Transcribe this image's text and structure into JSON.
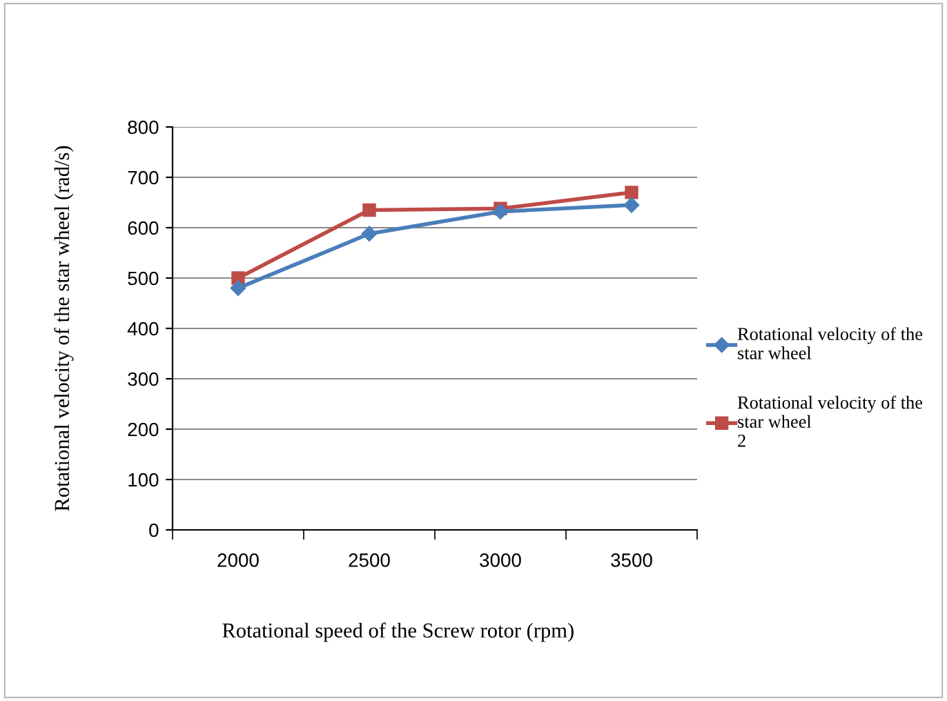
{
  "chart_data": {
    "type": "line",
    "xlabel": "Rotational speed of the Screw rotor (rpm)",
    "ylabel": "Rotational velocity of the star wheel (rad/s)",
    "categories": [
      "2000",
      "2500",
      "3000",
      "3500"
    ],
    "series": [
      {
        "name": "Rotational velocity of the\nstar wheel",
        "color": "#4a7ebb",
        "values": [
          480,
          588,
          632,
          645
        ],
        "marker": "diamond"
      },
      {
        "name": "Rotational velocity of the\nstar wheel\n2",
        "color": "#be4b48",
        "values": [
          500,
          635,
          638,
          670
        ],
        "marker": "square"
      }
    ],
    "ylim": [
      0,
      800
    ],
    "yticks": [
      0,
      100,
      200,
      300,
      400,
      500,
      600,
      700,
      800
    ],
    "grid": "y",
    "legend": "right",
    "line_style": "solid"
  }
}
